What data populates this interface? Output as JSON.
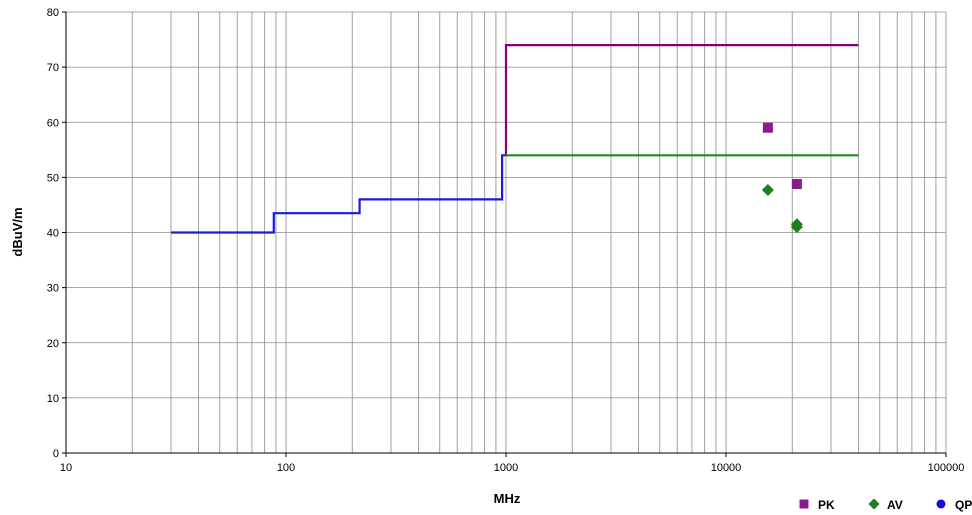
{
  "chart_data": {
    "type": "scatter",
    "title": "",
    "xlabel": "MHz",
    "ylabel": "dBuV/m",
    "xscale": "log",
    "xlim": [
      10,
      100000
    ],
    "ylim": [
      0,
      80
    ],
    "xticks": [
      10,
      100,
      1000,
      10000,
      100000
    ],
    "xtick_labels": [
      "10",
      "100",
      "1000",
      "10000",
      "100000"
    ],
    "yticks": [
      0,
      10,
      20,
      30,
      40,
      50,
      60,
      70,
      80
    ],
    "yticks_labels": [
      "0",
      "10",
      "20",
      "30",
      "40",
      "50",
      "60",
      "70",
      "80"
    ],
    "grid": true,
    "legend_position": "bottom-right",
    "legend": [
      {
        "label": "PK",
        "marker": "square",
        "color": "#8B1A8B"
      },
      {
        "label": "AV",
        "marker": "diamond",
        "color": "#1E7F1E"
      },
      {
        "label": "QP",
        "marker": "circle",
        "color": "#1010E0"
      }
    ],
    "limit_lines": [
      {
        "color": "#1A1AE6",
        "x": [
          30,
          88,
          88,
          216,
          216,
          960,
          960,
          1000
        ],
        "y": [
          40,
          40,
          43.5,
          43.5,
          46,
          46,
          54,
          54
        ]
      },
      {
        "color": "#800080",
        "x": [
          1000,
          1000,
          40000
        ],
        "y": [
          54,
          74,
          74
        ]
      },
      {
        "color": "#1E8A1E",
        "x": [
          1000,
          40000
        ],
        "y": [
          54,
          54
        ]
      }
    ],
    "series": [
      {
        "name": "PK",
        "marker": "square",
        "color": "#8B1A8B",
        "points": [
          [
            15500,
            59
          ],
          [
            21000,
            48.8
          ]
        ]
      },
      {
        "name": "AV",
        "marker": "diamond",
        "color": "#1E7F1E",
        "points": [
          [
            15500,
            47.7
          ],
          [
            21000,
            41.5
          ],
          [
            21000,
            41
          ]
        ]
      },
      {
        "name": "QP",
        "marker": "circle",
        "color": "#1010E0",
        "points": []
      }
    ]
  }
}
